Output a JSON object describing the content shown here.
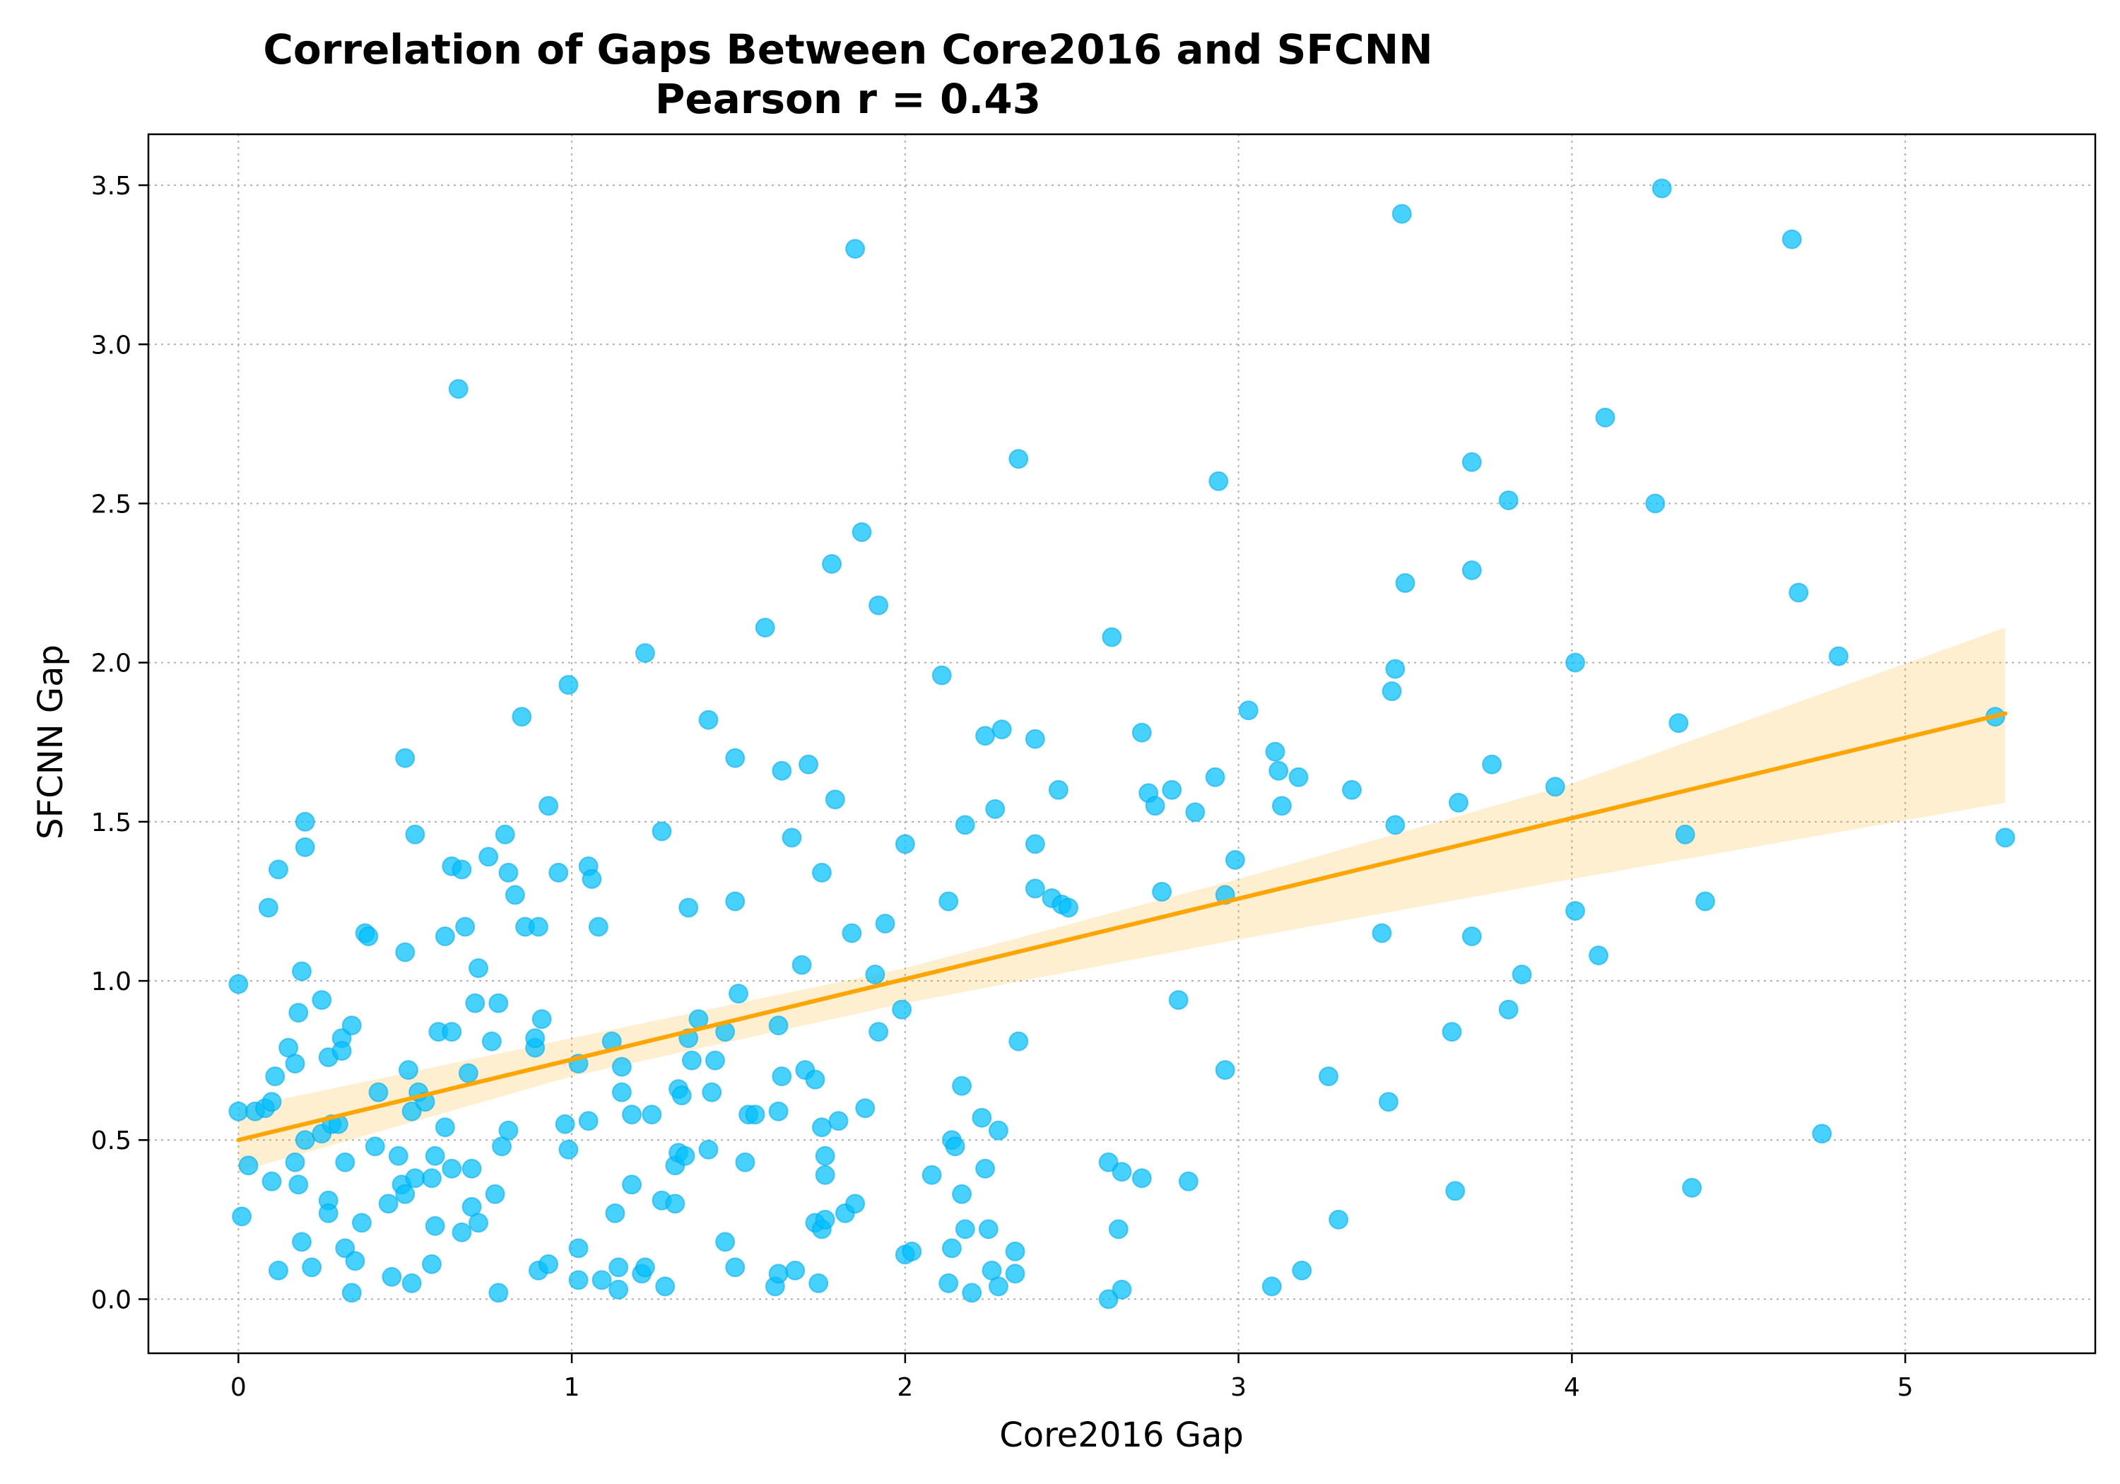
{
  "chart_data": {
    "type": "scatter",
    "title": "Correlation of Gaps Between Core2016 and SFCNN",
    "subtitle": "Pearson r = 0.43",
    "xlabel": "Core2016 Gap",
    "ylabel": "SFCNN Gap",
    "xlim": [
      -0.27,
      5.57
    ],
    "ylim": [
      -0.17,
      3.66
    ],
    "xticks": [
      0,
      1,
      2,
      3,
      4,
      5
    ],
    "xtick_labels": [
      "0",
      "1",
      "2",
      "3",
      "4",
      "5"
    ],
    "yticks": [
      0.0,
      0.5,
      1.0,
      1.5,
      2.0,
      2.5,
      3.0,
      3.5
    ],
    "ytick_labels": [
      "0.0",
      "0.5",
      "1.0",
      "1.5",
      "2.0",
      "2.5",
      "3.0",
      "3.5"
    ],
    "grid": true,
    "legend": "none",
    "colors": {
      "points": "#00bfff",
      "fit_line": "#ffa500",
      "ci_band": "#ffa500"
    },
    "regression": {
      "x_range": [
        0.0,
        5.3
      ],
      "line": [
        [
          0.0,
          0.5
        ],
        [
          5.3,
          1.84
        ]
      ],
      "ci_band": {
        "x": [
          0.0,
          1.0,
          2.0,
          3.0,
          4.0,
          5.3
        ],
        "lower": [
          0.4,
          0.7,
          0.93,
          1.13,
          1.32,
          1.56
        ],
        "upper": [
          0.6,
          0.82,
          1.04,
          1.32,
          1.62,
          2.11
        ]
      }
    },
    "points": [
      [
        0.0,
        0.99
      ],
      [
        0.0,
        0.59
      ],
      [
        0.01,
        0.26
      ],
      [
        0.03,
        0.42
      ],
      [
        0.05,
        0.59
      ],
      [
        0.08,
        0.6
      ],
      [
        0.09,
        1.23
      ],
      [
        0.1,
        0.37
      ],
      [
        0.1,
        0.62
      ],
      [
        0.11,
        0.7
      ],
      [
        0.12,
        1.35
      ],
      [
        0.12,
        0.09
      ],
      [
        0.15,
        0.79
      ],
      [
        0.17,
        0.74
      ],
      [
        0.17,
        0.43
      ],
      [
        0.18,
        0.36
      ],
      [
        0.18,
        0.9
      ],
      [
        0.19,
        1.03
      ],
      [
        0.19,
        0.18
      ],
      [
        0.2,
        1.5
      ],
      [
        0.2,
        1.42
      ],
      [
        0.2,
        0.5
      ],
      [
        0.22,
        0.1
      ],
      [
        0.25,
        0.94
      ],
      [
        0.25,
        0.52
      ],
      [
        0.27,
        0.76
      ],
      [
        0.27,
        0.31
      ],
      [
        0.27,
        0.27
      ],
      [
        0.28,
        0.55
      ],
      [
        0.3,
        0.55
      ],
      [
        0.31,
        0.82
      ],
      [
        0.31,
        0.78
      ],
      [
        0.32,
        0.43
      ],
      [
        0.32,
        0.16
      ],
      [
        0.34,
        0.86
      ],
      [
        0.34,
        0.02
      ],
      [
        0.35,
        0.12
      ],
      [
        0.37,
        0.24
      ],
      [
        0.38,
        1.15
      ],
      [
        0.39,
        1.14
      ],
      [
        0.41,
        0.48
      ],
      [
        0.42,
        0.65
      ],
      [
        0.45,
        0.3
      ],
      [
        0.46,
        0.07
      ],
      [
        0.48,
        0.45
      ],
      [
        0.49,
        0.36
      ],
      [
        0.5,
        1.7
      ],
      [
        0.5,
        1.09
      ],
      [
        0.5,
        0.33
      ],
      [
        0.51,
        0.72
      ],
      [
        0.52,
        0.59
      ],
      [
        0.52,
        0.05
      ],
      [
        0.53,
        1.46
      ],
      [
        0.53,
        0.38
      ],
      [
        0.54,
        0.65
      ],
      [
        0.56,
        0.62
      ],
      [
        0.58,
        0.38
      ],
      [
        0.58,
        0.11
      ],
      [
        0.59,
        0.45
      ],
      [
        0.59,
        0.23
      ],
      [
        0.6,
        0.84
      ],
      [
        0.62,
        1.14
      ],
      [
        0.62,
        0.54
      ],
      [
        0.64,
        1.36
      ],
      [
        0.64,
        0.84
      ],
      [
        0.64,
        0.41
      ],
      [
        0.66,
        2.86
      ],
      [
        0.67,
        1.35
      ],
      [
        0.67,
        0.21
      ],
      [
        0.68,
        1.17
      ],
      [
        0.69,
        0.71
      ],
      [
        0.7,
        0.41
      ],
      [
        0.7,
        0.29
      ],
      [
        0.71,
        0.93
      ],
      [
        0.72,
        1.04
      ],
      [
        0.72,
        0.24
      ],
      [
        0.75,
        1.39
      ],
      [
        0.76,
        0.81
      ],
      [
        0.77,
        0.33
      ],
      [
        0.78,
        0.93
      ],
      [
        0.78,
        0.02
      ],
      [
        0.79,
        0.48
      ],
      [
        0.8,
        1.46
      ],
      [
        0.81,
        1.34
      ],
      [
        0.81,
        0.53
      ],
      [
        0.83,
        1.27
      ],
      [
        0.85,
        1.83
      ],
      [
        0.86,
        1.17
      ],
      [
        0.89,
        0.79
      ],
      [
        0.89,
        0.82
      ],
      [
        0.9,
        1.17
      ],
      [
        0.9,
        0.09
      ],
      [
        0.91,
        0.88
      ],
      [
        0.93,
        1.55
      ],
      [
        0.93,
        0.11
      ],
      [
        0.96,
        1.34
      ],
      [
        0.98,
        0.55
      ],
      [
        0.99,
        1.93
      ],
      [
        0.99,
        0.47
      ],
      [
        1.02,
        0.74
      ],
      [
        1.02,
        0.16
      ],
      [
        1.02,
        0.06
      ],
      [
        1.05,
        1.36
      ],
      [
        1.05,
        0.56
      ],
      [
        1.06,
        1.32
      ],
      [
        1.08,
        1.17
      ],
      [
        1.09,
        0.06
      ],
      [
        1.12,
        0.81
      ],
      [
        1.13,
        0.27
      ],
      [
        1.14,
        0.1
      ],
      [
        1.14,
        0.03
      ],
      [
        1.15,
        0.73
      ],
      [
        1.15,
        0.65
      ],
      [
        1.18,
        0.58
      ],
      [
        1.18,
        0.36
      ],
      [
        1.21,
        0.08
      ],
      [
        1.22,
        2.03
      ],
      [
        1.22,
        0.1
      ],
      [
        1.24,
        0.58
      ],
      [
        1.27,
        1.47
      ],
      [
        1.27,
        0.31
      ],
      [
        1.28,
        0.04
      ],
      [
        1.31,
        0.42
      ],
      [
        1.31,
        0.3
      ],
      [
        1.32,
        0.66
      ],
      [
        1.32,
        0.46
      ],
      [
        1.33,
        0.64
      ],
      [
        1.34,
        0.45
      ],
      [
        1.35,
        1.23
      ],
      [
        1.35,
        0.82
      ],
      [
        1.36,
        0.75
      ],
      [
        1.38,
        0.88
      ],
      [
        1.41,
        1.82
      ],
      [
        1.41,
        0.47
      ],
      [
        1.42,
        0.65
      ],
      [
        1.43,
        0.75
      ],
      [
        1.46,
        0.84
      ],
      [
        1.46,
        0.18
      ],
      [
        1.49,
        1.7
      ],
      [
        1.49,
        1.25
      ],
      [
        1.49,
        0.1
      ],
      [
        1.5,
        0.96
      ],
      [
        1.52,
        0.43
      ],
      [
        1.53,
        0.58
      ],
      [
        1.55,
        0.58
      ],
      [
        1.58,
        2.11
      ],
      [
        1.61,
        0.04
      ],
      [
        1.62,
        0.86
      ],
      [
        1.62,
        0.59
      ],
      [
        1.62,
        0.08
      ],
      [
        1.63,
        1.66
      ],
      [
        1.63,
        0.7
      ],
      [
        1.66,
        1.45
      ],
      [
        1.67,
        0.09
      ],
      [
        1.69,
        1.05
      ],
      [
        1.7,
        0.72
      ],
      [
        1.71,
        1.68
      ],
      [
        1.73,
        0.69
      ],
      [
        1.73,
        0.24
      ],
      [
        1.74,
        0.05
      ],
      [
        1.75,
        1.34
      ],
      [
        1.75,
        0.54
      ],
      [
        1.75,
        0.22
      ],
      [
        1.76,
        0.45
      ],
      [
        1.76,
        0.39
      ],
      [
        1.76,
        0.25
      ],
      [
        1.78,
        2.31
      ],
      [
        1.79,
        1.57
      ],
      [
        1.8,
        0.56
      ],
      [
        1.82,
        0.27
      ],
      [
        1.84,
        1.15
      ],
      [
        1.85,
        3.3
      ],
      [
        1.85,
        0.3
      ],
      [
        1.87,
        2.41
      ],
      [
        1.88,
        0.6
      ],
      [
        1.91,
        1.02
      ],
      [
        1.92,
        2.18
      ],
      [
        1.92,
        0.84
      ],
      [
        1.94,
        1.18
      ],
      [
        1.99,
        0.91
      ],
      [
        2.0,
        1.43
      ],
      [
        2.0,
        0.14
      ],
      [
        2.02,
        0.15
      ],
      [
        2.08,
        0.39
      ],
      [
        2.11,
        1.96
      ],
      [
        2.13,
        1.25
      ],
      [
        2.13,
        0.05
      ],
      [
        2.14,
        0.5
      ],
      [
        2.14,
        0.16
      ],
      [
        2.15,
        0.48
      ],
      [
        2.17,
        0.67
      ],
      [
        2.17,
        0.33
      ],
      [
        2.18,
        1.49
      ],
      [
        2.18,
        0.22
      ],
      [
        2.2,
        0.02
      ],
      [
        2.23,
        0.57
      ],
      [
        2.24,
        1.77
      ],
      [
        2.24,
        0.41
      ],
      [
        2.25,
        0.22
      ],
      [
        2.26,
        0.09
      ],
      [
        2.27,
        1.54
      ],
      [
        2.28,
        0.53
      ],
      [
        2.28,
        0.04
      ],
      [
        2.29,
        1.79
      ],
      [
        2.33,
        0.15
      ],
      [
        2.33,
        0.08
      ],
      [
        2.34,
        2.64
      ],
      [
        2.34,
        0.81
      ],
      [
        2.39,
        1.76
      ],
      [
        2.39,
        1.43
      ],
      [
        2.39,
        1.29
      ],
      [
        2.44,
        1.26
      ],
      [
        2.46,
        1.6
      ],
      [
        2.47,
        1.24
      ],
      [
        2.49,
        1.23
      ],
      [
        2.61,
        0.43
      ],
      [
        2.61,
        0.0
      ],
      [
        2.62,
        2.08
      ],
      [
        2.64,
        0.22
      ],
      [
        2.65,
        0.4
      ],
      [
        2.65,
        0.03
      ],
      [
        2.71,
        1.78
      ],
      [
        2.71,
        0.38
      ],
      [
        2.73,
        1.59
      ],
      [
        2.75,
        1.55
      ],
      [
        2.77,
        1.28
      ],
      [
        2.8,
        1.6
      ],
      [
        2.82,
        0.94
      ],
      [
        2.85,
        0.37
      ],
      [
        2.87,
        1.53
      ],
      [
        2.93,
        1.64
      ],
      [
        2.94,
        2.57
      ],
      [
        2.96,
        1.27
      ],
      [
        2.96,
        0.72
      ],
      [
        2.99,
        1.38
      ],
      [
        3.03,
        1.85
      ],
      [
        3.1,
        0.04
      ],
      [
        3.11,
        1.72
      ],
      [
        3.12,
        1.66
      ],
      [
        3.13,
        1.55
      ],
      [
        3.18,
        1.64
      ],
      [
        3.19,
        0.09
      ],
      [
        3.27,
        0.7
      ],
      [
        3.3,
        0.25
      ],
      [
        3.34,
        1.6
      ],
      [
        3.43,
        1.15
      ],
      [
        3.45,
        0.62
      ],
      [
        3.46,
        1.91
      ],
      [
        3.47,
        1.98
      ],
      [
        3.47,
        1.49
      ],
      [
        3.49,
        3.41
      ],
      [
        3.5,
        2.25
      ],
      [
        3.64,
        0.84
      ],
      [
        3.65,
        0.34
      ],
      [
        3.66,
        1.56
      ],
      [
        3.7,
        2.63
      ],
      [
        3.7,
        2.29
      ],
      [
        3.7,
        1.14
      ],
      [
        3.76,
        1.68
      ],
      [
        3.81,
        2.51
      ],
      [
        3.81,
        0.91
      ],
      [
        3.85,
        1.02
      ],
      [
        3.95,
        1.61
      ],
      [
        4.01,
        2.0
      ],
      [
        4.01,
        1.22
      ],
      [
        4.08,
        1.08
      ],
      [
        4.1,
        2.77
      ],
      [
        4.25,
        2.5
      ],
      [
        4.27,
        3.49
      ],
      [
        4.32,
        1.81
      ],
      [
        4.34,
        1.46
      ],
      [
        4.36,
        0.35
      ],
      [
        4.4,
        1.25
      ],
      [
        4.66,
        3.33
      ],
      [
        4.68,
        2.22
      ],
      [
        4.75,
        0.52
      ],
      [
        4.8,
        2.02
      ],
      [
        5.27,
        1.83
      ],
      [
        5.3,
        1.45
      ]
    ]
  }
}
